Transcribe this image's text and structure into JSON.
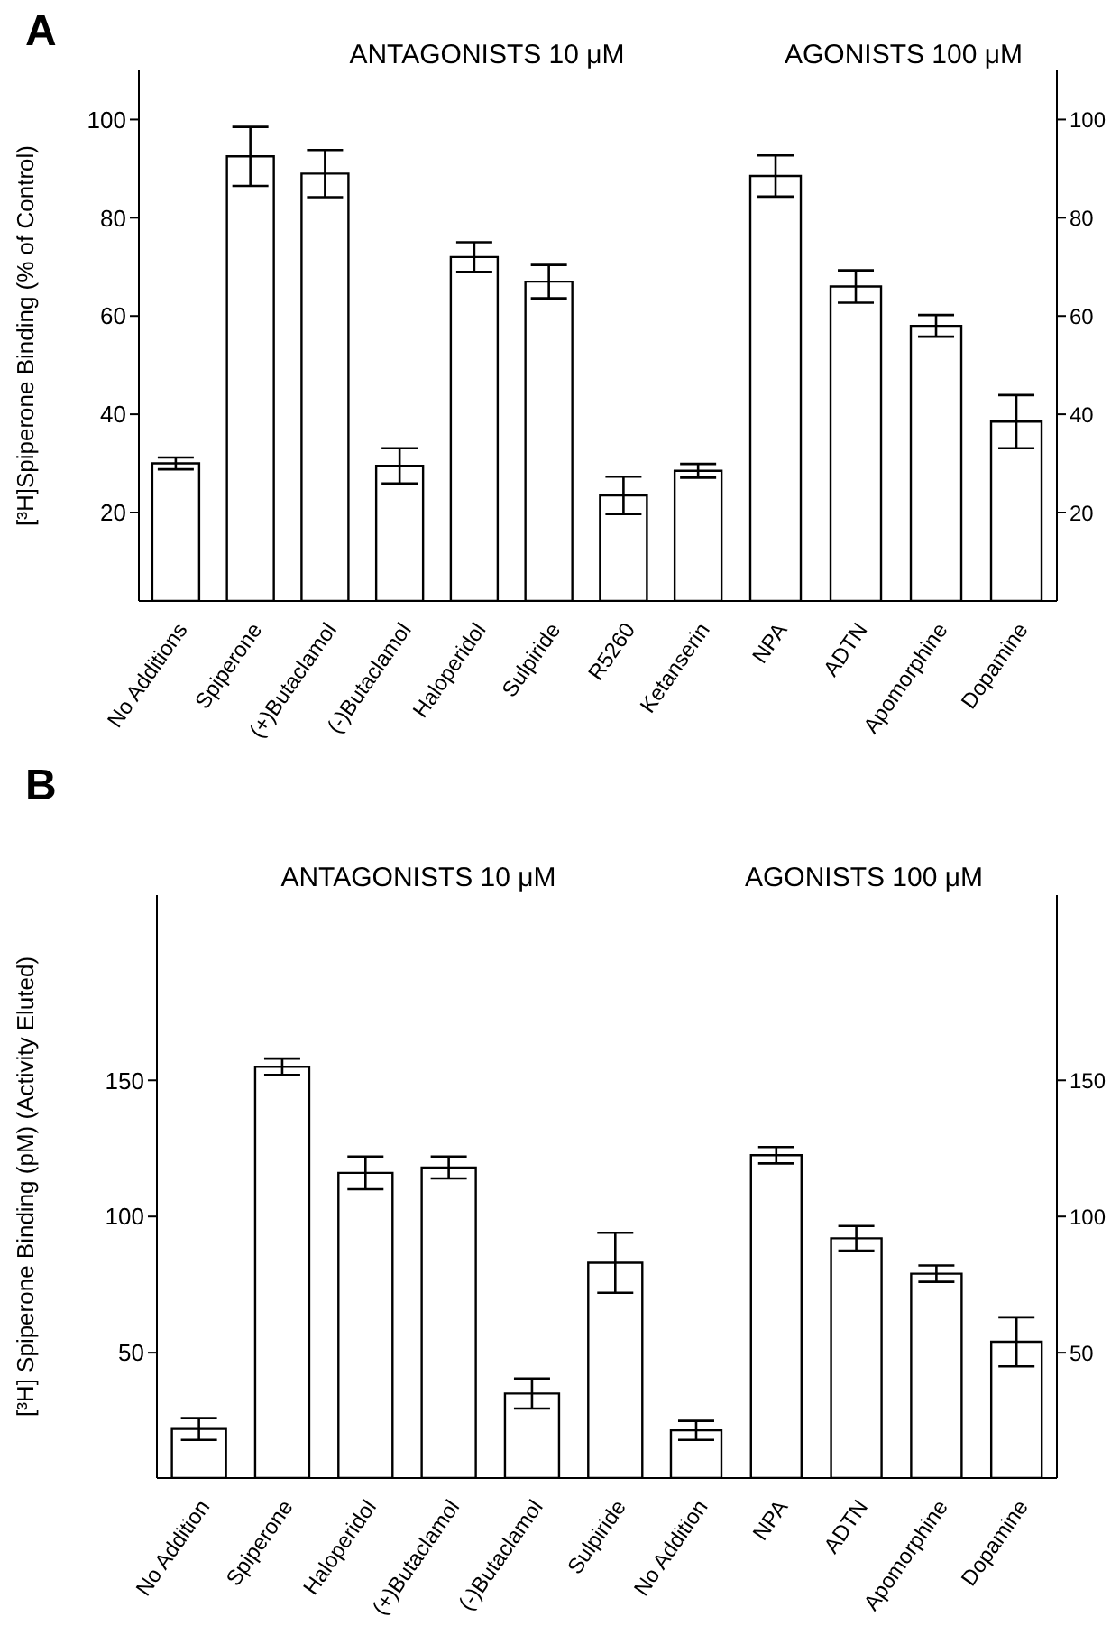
{
  "chart_data": [
    {
      "type": "bar",
      "title": "ANTAGONISTS 10 μM",
      "annotations": [
        "A"
      ],
      "ylabel": "[³H]Spiperone Binding (% of Control)",
      "categories": [
        "No Additions",
        "Spiperone",
        "(+)Butaclamol",
        "(-)Butaclamol",
        "Haloperidol",
        "Sulpiride",
        "R5260",
        "Ketanserin"
      ],
      "ylim": [
        2,
        110
      ],
      "yticks": [
        20,
        40,
        60,
        80,
        100
      ],
      "series": [
        {
          "color": "#ffffff",
          "values": [
            30,
            92.5,
            89,
            29.5,
            72,
            67,
            23.5,
            28.5
          ],
          "errors": [
            1.2,
            6,
            4.8,
            3.6,
            3,
            3.4,
            3.8,
            1.4
          ]
        }
      ]
    },
    {
      "type": "bar",
      "title": "AGONISTS 100 μM",
      "categories": [
        "NPA",
        "ADTN",
        "Apomorphine",
        "Dopamine"
      ],
      "y2lim": [
        2,
        110
      ],
      "y2ticks": [
        20,
        40,
        60,
        80,
        100
      ],
      "series": [
        {
          "color": "#ffffff",
          "axis": "y2",
          "values": [
            88.5,
            66,
            58,
            38.5
          ],
          "errors": [
            4.2,
            3.3,
            2.2,
            5.4
          ]
        }
      ]
    },
    {
      "type": "bar",
      "title": "ANTAGONISTS 10 μM",
      "annotations": [
        "B"
      ],
      "ylabel": "[³H] Spiperone Binding (pM) (Activity Eluted)",
      "categories": [
        "No Addition",
        "Spiperone",
        "Haloperidol",
        "(+)Butaclamol",
        "(-)Butaclamol",
        "Sulpiride"
      ],
      "ylim": [
        4,
        218
      ],
      "yticks": [
        50,
        100,
        150
      ],
      "series": [
        {
          "color": "#ffffff",
          "values": [
            22,
            155,
            116,
            118,
            35,
            83
          ],
          "errors": [
            4,
            3,
            6,
            4,
            5.5,
            11
          ]
        }
      ]
    },
    {
      "type": "bar",
      "title": "AGONISTS 100 μM",
      "categories": [
        "No Addition",
        "NPA",
        "ADTN",
        "Apomorphine",
        "Dopamine"
      ],
      "y2lim": [
        4,
        218
      ],
      "y2ticks": [
        50,
        100,
        150
      ],
      "series": [
        {
          "color": "#ffffff",
          "axis": "y2",
          "values": [
            21.5,
            122.5,
            92,
            79,
            54
          ],
          "errors": [
            3.5,
            3,
            4.5,
            3,
            9
          ]
        }
      ]
    }
  ]
}
